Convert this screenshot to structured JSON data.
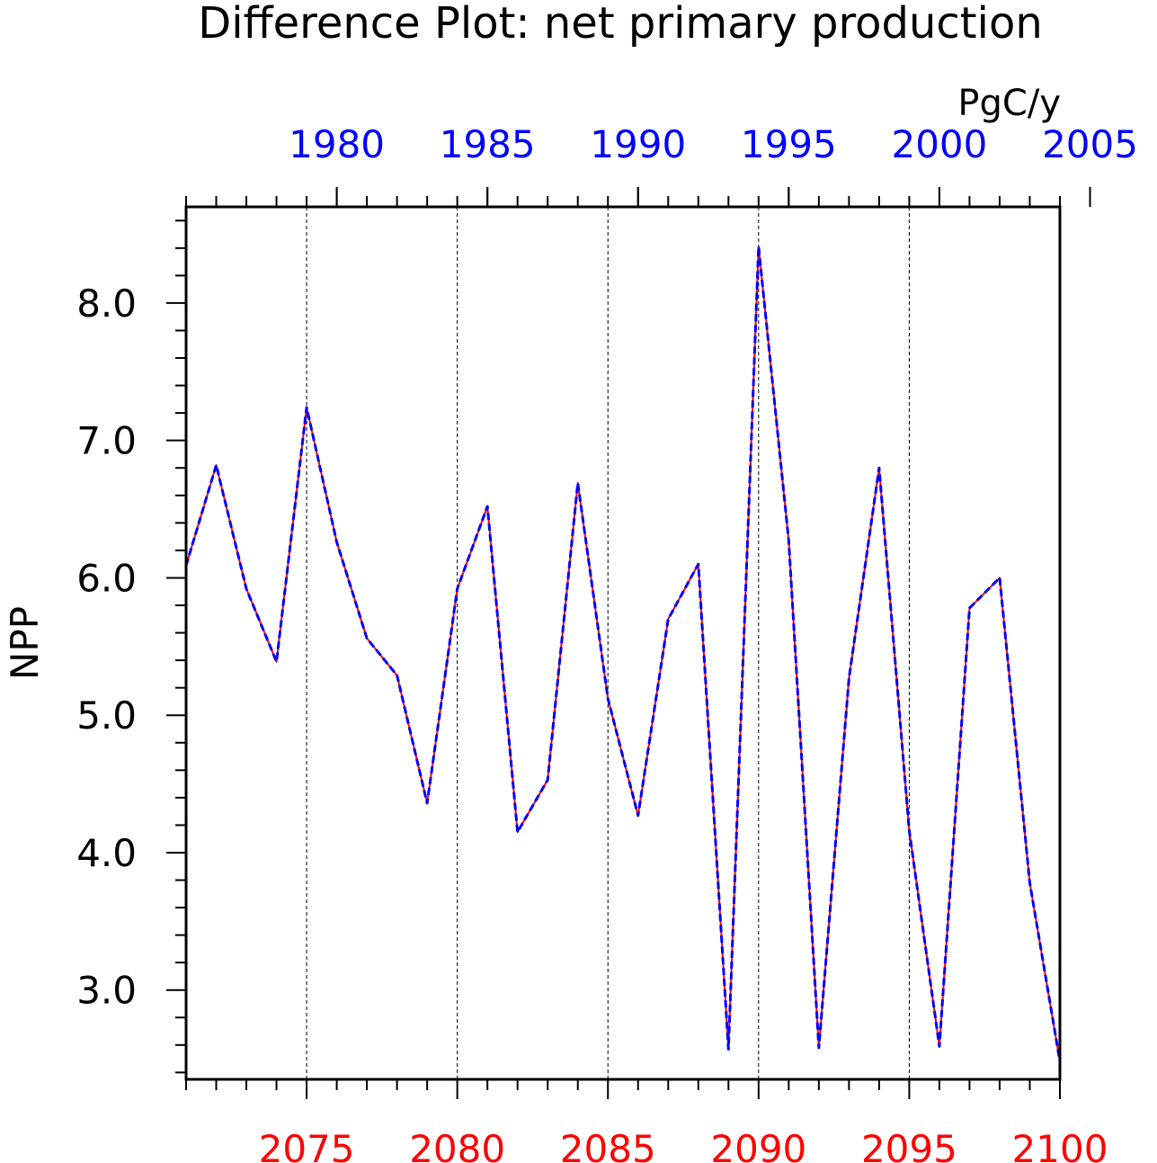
{
  "chart_data": {
    "type": "line",
    "title": "Difference Plot: net primary production",
    "units": "PgC/y",
    "ylabel": "NPP",
    "xlabel": "",
    "ylim": [
      2.35,
      8.7
    ],
    "yticks": [
      3.0,
      4.0,
      5.0,
      6.0,
      7.0,
      8.0
    ],
    "ytick_labels": [
      "3.0",
      "4.0",
      "5.0",
      "6.0",
      "7.0",
      "8.0"
    ],
    "grid": "vertical dashed lines at bottom-axis major ticks",
    "x_bottom": {
      "range": [
        2071,
        2100
      ],
      "ticks": [
        2075,
        2080,
        2085,
        2090,
        2095,
        2100
      ],
      "tick_labels": [
        "2075",
        "2080",
        "2085",
        "2090",
        "2095",
        "2100"
      ],
      "color": "#ff0000"
    },
    "x_top": {
      "range": [
        1975,
        2004
      ],
      "ticks": [
        1980,
        1985,
        1990,
        1995,
        2000,
        2005
      ],
      "tick_labels": [
        "1980",
        "1985",
        "1990",
        "1995",
        "2000",
        "2005"
      ],
      "color": "#0000ff"
    },
    "series": [
      {
        "color": "#ff0000",
        "style": "solid",
        "axis": "bottom",
        "x": [
          2071,
          2072,
          2073,
          2074,
          2075,
          2076,
          2077,
          2078,
          2079,
          2080,
          2081,
          2082,
          2083,
          2084,
          2085,
          2086,
          2087,
          2088,
          2089,
          2090,
          2091,
          2092,
          2093,
          2094,
          2095,
          2096,
          2097,
          2098,
          2099,
          2100
        ],
        "values": [
          6.09,
          6.82,
          5.92,
          5.39,
          7.24,
          6.26,
          5.56,
          5.29,
          4.36,
          5.92,
          6.52,
          4.15,
          4.53,
          6.69,
          5.12,
          4.27,
          5.7,
          6.1,
          2.57,
          8.41,
          6.27,
          2.58,
          5.27,
          6.8,
          4.16,
          2.59,
          5.78,
          6.0,
          3.78,
          2.48
        ]
      },
      {
        "color": "#0000ff",
        "style": "dashed",
        "axis": "top",
        "x": [
          1975,
          1976,
          1977,
          1978,
          1979,
          1980,
          1981,
          1982,
          1983,
          1984,
          1985,
          1986,
          1987,
          1988,
          1989,
          1990,
          1991,
          1992,
          1993,
          1994,
          1995,
          1996,
          1997,
          1998,
          1999,
          2000,
          2001,
          2002,
          2003,
          2004
        ],
        "values": [
          6.09,
          6.82,
          5.92,
          5.39,
          7.24,
          6.26,
          5.56,
          5.29,
          4.36,
          5.92,
          6.52,
          4.15,
          4.53,
          6.69,
          5.12,
          4.27,
          5.7,
          6.1,
          2.57,
          8.41,
          6.27,
          2.58,
          5.27,
          6.8,
          4.16,
          2.59,
          5.78,
          6.0,
          3.78,
          2.48
        ]
      }
    ]
  }
}
